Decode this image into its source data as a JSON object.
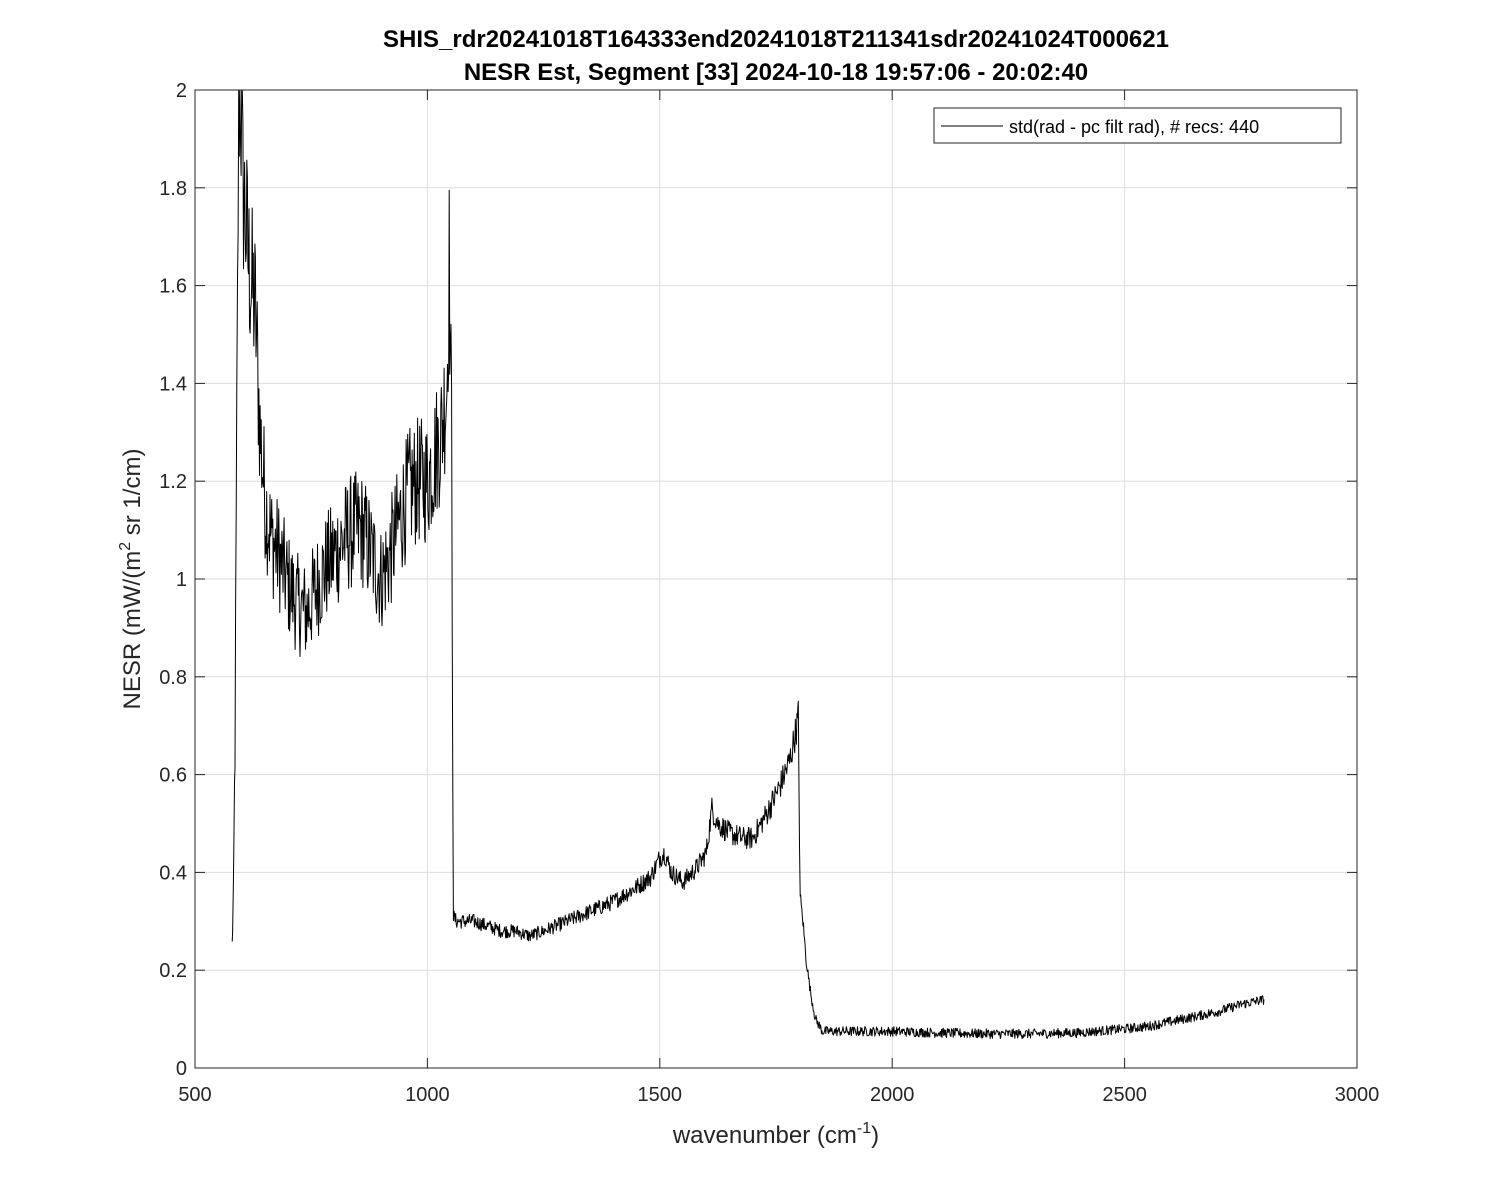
{
  "chart_data": {
    "type": "line",
    "title": "SHIS_rdr20241018T164333end20241018T211341sdr20241024T000621",
    "subtitle": "NESR Est, Segment [33] 2024-10-18 19:57:06 - 20:02:40",
    "xlabel": {
      "main": "wavenumber (cm",
      "sup": "-1",
      "tail": ")"
    },
    "ylabel": {
      "main": "NESR (mW/(m",
      "sup": "2",
      "tail": " sr 1/cm)"
    },
    "xlim": [
      500,
      3000
    ],
    "ylim": [
      0,
      2
    ],
    "xticks": [
      500,
      1000,
      1500,
      2000,
      2500,
      3000
    ],
    "xtick_labels": [
      "500",
      "1000",
      "1500",
      "2000",
      "2500",
      "3000"
    ],
    "yticks": [
      0,
      0.2,
      0.4,
      0.6,
      0.8,
      1.0,
      1.2,
      1.4,
      1.6,
      1.8,
      2.0
    ],
    "ytick_labels": [
      "0",
      "0.2",
      "0.4",
      "0.6",
      "0.8",
      "1",
      "1.2",
      "1.4",
      "1.6",
      "1.8",
      "2"
    ],
    "grid": true,
    "legend_position": "top-right",
    "series": [
      {
        "name": "std(rad - pc filt rad), # recs:  440",
        "color": "#000000",
        "x": [
          580,
          583,
          586,
          590,
          594,
          598,
          603,
          608,
          615,
          622,
          630,
          640,
          652,
          665,
          680,
          700,
          720,
          740,
          760,
          780,
          800,
          820,
          840,
          860,
          880,
          900,
          920,
          940,
          960,
          980,
          1000,
          1015,
          1030,
          1042,
          1047,
          1052,
          1056,
          1062,
          1080,
          1100,
          1130,
          1160,
          1190,
          1220,
          1250,
          1300,
          1350,
          1400,
          1450,
          1480,
          1500,
          1510,
          1525,
          1550,
          1580,
          1600,
          1612,
          1625,
          1650,
          1680,
          1700,
          1730,
          1760,
          1780,
          1795,
          1798,
          1802,
          1808,
          1815,
          1825,
          1835,
          1850,
          1900,
          2000,
          2100,
          2200,
          2300,
          2400,
          2500,
          2550,
          2600,
          2650,
          2700,
          2750,
          2800
        ],
        "y": [
          0.25,
          0.37,
          0.66,
          1.3,
          2.0,
          2.0,
          1.8,
          1.75,
          1.65,
          1.6,
          1.55,
          1.3,
          1.15,
          1.08,
          1.05,
          0.99,
          0.95,
          0.93,
          0.98,
          1.02,
          1.05,
          1.08,
          1.1,
          1.1,
          1.05,
          1.0,
          1.05,
          1.12,
          1.18,
          1.2,
          1.2,
          1.25,
          1.3,
          1.4,
          1.65,
          1.3,
          0.31,
          0.3,
          0.3,
          0.3,
          0.29,
          0.28,
          0.28,
          0.27,
          0.28,
          0.3,
          0.32,
          0.34,
          0.37,
          0.39,
          0.43,
          0.44,
          0.4,
          0.38,
          0.41,
          0.44,
          0.53,
          0.5,
          0.48,
          0.47,
          0.47,
          0.52,
          0.58,
          0.63,
          0.7,
          0.72,
          0.35,
          0.3,
          0.22,
          0.15,
          0.1,
          0.075,
          0.075,
          0.075,
          0.072,
          0.07,
          0.07,
          0.072,
          0.08,
          0.085,
          0.095,
          0.105,
          0.115,
          0.13,
          0.14
        ]
      }
    ]
  }
}
